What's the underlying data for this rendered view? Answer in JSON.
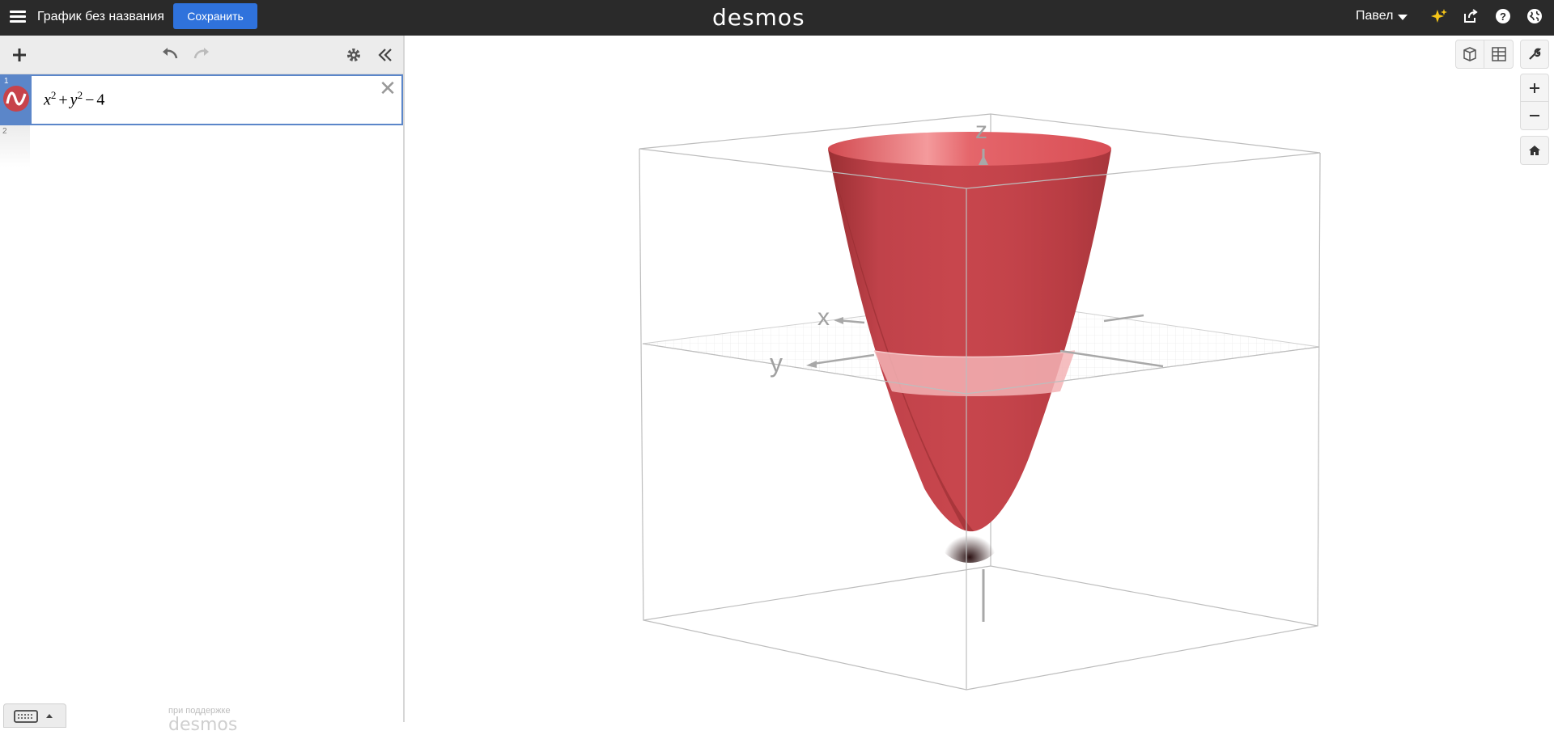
{
  "header": {
    "graph_title": "График без названия",
    "save_label": "Сохранить",
    "logo": "desmos",
    "user_name": "Павел",
    "icons": [
      "menu-icon",
      "sparkle-icon",
      "share-icon",
      "help-icon",
      "language-icon"
    ]
  },
  "expressions": {
    "items": [
      {
        "index": "1",
        "latex": "x^2 + y^2 - 4",
        "color": "#c7434b"
      },
      {
        "index": "2",
        "latex": ""
      }
    ]
  },
  "footer": {
    "powered_by": "при поддержке",
    "powered_logo": "desmos"
  },
  "graph": {
    "axis_x": "x",
    "axis_y": "y",
    "axis_z": "z",
    "surface_color": "#c7434b"
  }
}
